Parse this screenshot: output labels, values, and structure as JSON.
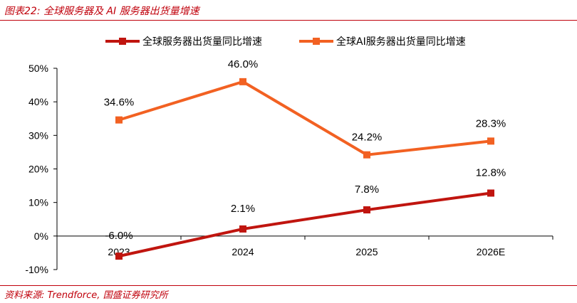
{
  "caption": "图表22:  全球服务器及 AI 服务器出货量增速",
  "source": "资料来源:  Trendforce,  国盛证券研究所",
  "chart_data": {
    "type": "line",
    "title": "",
    "xlabel": "",
    "ylabel": "",
    "categories": [
      "2023",
      "2024",
      "2025",
      "2026E"
    ],
    "ylim": [
      -10,
      50
    ],
    "yticks": [
      -10,
      0,
      10,
      20,
      30,
      40,
      50
    ],
    "ytick_labels": [
      "-10%",
      "0%",
      "10%",
      "20%",
      "30%",
      "40%",
      "50%"
    ],
    "grid": false,
    "legend_position": "top",
    "series": [
      {
        "name": "全球服务器出货量同比增速",
        "values": [
          -6.0,
          2.1,
          7.8,
          12.8
        ],
        "labels": [
          "-6.0%",
          "2.1%",
          "7.8%",
          "12.8%"
        ],
        "color": "#c0150f"
      },
      {
        "name": "全球AI服务器出货量同比增速",
        "values": [
          34.6,
          46.0,
          24.2,
          28.3
        ],
        "labels": [
          "34.6%",
          "46.0%",
          "24.2%",
          "28.3%"
        ],
        "color": "#f26122"
      }
    ]
  }
}
